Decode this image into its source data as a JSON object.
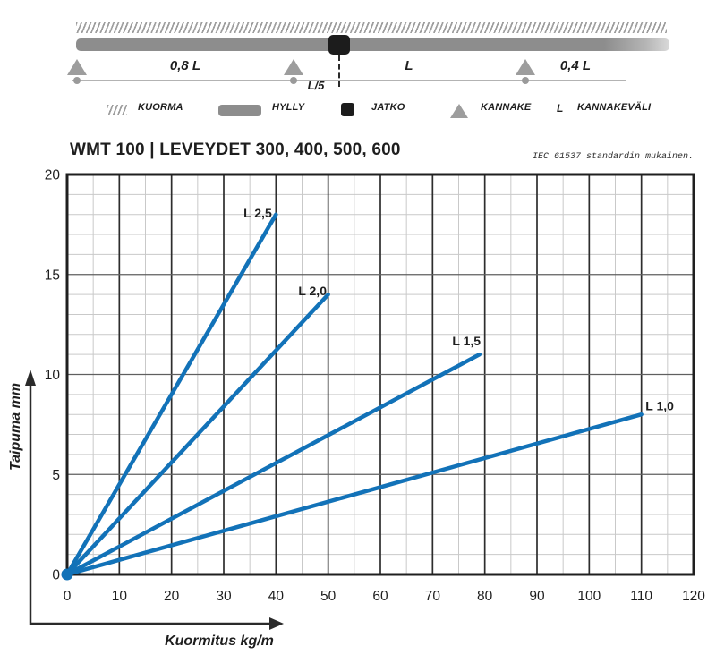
{
  "diagram": {
    "span_left": "0,8 L",
    "span_mid": "L",
    "span_right": "0,4 L",
    "joint_offset": "L/5"
  },
  "legend": {
    "items": [
      {
        "icon": "load-hatch-icon",
        "label": "KUORMA"
      },
      {
        "icon": "shelf-swatch-icon",
        "label": "HYLLY"
      },
      {
        "icon": "joint-square-icon",
        "label": "JATKO"
      },
      {
        "icon": "support-triangle-icon",
        "label": "KANNAKE"
      },
      {
        "icon": "letter-L-symbol",
        "symbol": "L",
        "label": "KANNAKEVÄLI"
      }
    ]
  },
  "header": {
    "title": "WMT 100  | LEVEYDET 300, 400, 500, 600",
    "note": "IEC 61537 standardin mukainen."
  },
  "chart_data": {
    "type": "line",
    "title": "WMT 100 | LEVEYDET 300, 400, 500, 600",
    "xlabel": "Kuormitus kg/m",
    "ylabel": "Taipuma mm",
    "xlim": [
      0,
      120
    ],
    "ylim": [
      0,
      20
    ],
    "x_major_ticks": [
      0,
      10,
      20,
      30,
      40,
      50,
      60,
      70,
      80,
      90,
      100,
      110,
      120
    ],
    "y_major_ticks": [
      0,
      5,
      10,
      15,
      20
    ],
    "x_minor_step": 5,
    "y_minor_step": 1,
    "grid": true,
    "legend_position": "inline-labels",
    "line_color": "#1272b8",
    "series": [
      {
        "name": "L 2,5",
        "points": [
          [
            0,
            0
          ],
          [
            40,
            18
          ]
        ],
        "label_at": [
          36.5,
          17.85
        ]
      },
      {
        "name": "L 2,0",
        "points": [
          [
            0,
            0
          ],
          [
            50,
            14
          ]
        ],
        "label_at": [
          47.0,
          13.95
        ]
      },
      {
        "name": "L 1,5",
        "points": [
          [
            0,
            0
          ],
          [
            79,
            11
          ]
        ],
        "label_at": [
          76.5,
          11.45
        ]
      },
      {
        "name": "L 1,0",
        "points": [
          [
            0,
            0
          ],
          [
            110,
            8
          ]
        ],
        "label_at": [
          113.5,
          8.2
        ]
      }
    ],
    "colors": {
      "line": "#1272b8",
      "grid_minor": "#c9c9c9",
      "grid_major_v": "#2d2d2d",
      "grid_major_h": "#5f5f5f",
      "border": "#1f1f1f",
      "text": "#1e1e1e"
    }
  }
}
